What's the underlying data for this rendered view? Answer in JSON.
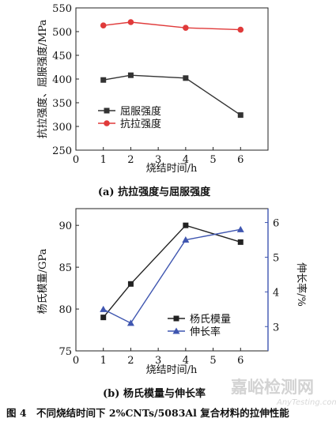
{
  "chart_data": [
    {
      "type": "line",
      "xlabel": "烧结时间/h",
      "ylabel": "抗拉强度、屈服强度/MPa",
      "xlim": [
        0,
        7
      ],
      "xticks": [
        0,
        1,
        2,
        3,
        4,
        5,
        6
      ],
      "ylim": [
        250,
        550
      ],
      "yticks": [
        250,
        300,
        350,
        400,
        450,
        500,
        550
      ],
      "x": [
        1,
        2,
        4,
        6
      ],
      "series": [
        {
          "name": "屈服强度",
          "values": [
            398,
            408,
            402,
            324
          ],
          "color": "#333333",
          "marker": "square"
        },
        {
          "name": "抗拉强度",
          "values": [
            513,
            520,
            508,
            504
          ],
          "color": "#e03a3a",
          "marker": "circle"
        }
      ],
      "legend_position": "bottom-left",
      "grid": false,
      "caption": "(a) 抗拉强度与屈服强度"
    },
    {
      "type": "line",
      "xlabel": "烧结时间/h",
      "ylabel": "杨氏模量/GPa",
      "ylabel_right": "伸长率/%",
      "xlim": [
        0,
        7
      ],
      "xticks": [
        0,
        1,
        2,
        3,
        4,
        5,
        6
      ],
      "ylim": [
        75,
        92
      ],
      "yticks": [
        75,
        80,
        85,
        90
      ],
      "ylim_right": [
        2.3,
        6.4
      ],
      "yticks_right": [
        3,
        4,
        5,
        6
      ],
      "x": [
        1,
        2,
        4,
        6
      ],
      "series": [
        {
          "name": "杨氏模量",
          "values": [
            79,
            83,
            90,
            88
          ],
          "color": "#222222",
          "marker": "square",
          "axis": "left"
        },
        {
          "name": "伸长率",
          "values": [
            3.5,
            3.1,
            5.5,
            5.8
          ],
          "color": "#3f56b0",
          "marker": "triangle",
          "axis": "right"
        }
      ],
      "legend_position": "bottom-right",
      "grid": false,
      "caption": "(b) 杨氏模量与伸长率"
    }
  ],
  "figure_caption": "图 4　不同烧结时间下 2%CNTs/5083Al 复合材料的拉伸性能",
  "watermark": {
    "text": "嘉峪检测网",
    "subtext": "AnyTesting.com"
  }
}
